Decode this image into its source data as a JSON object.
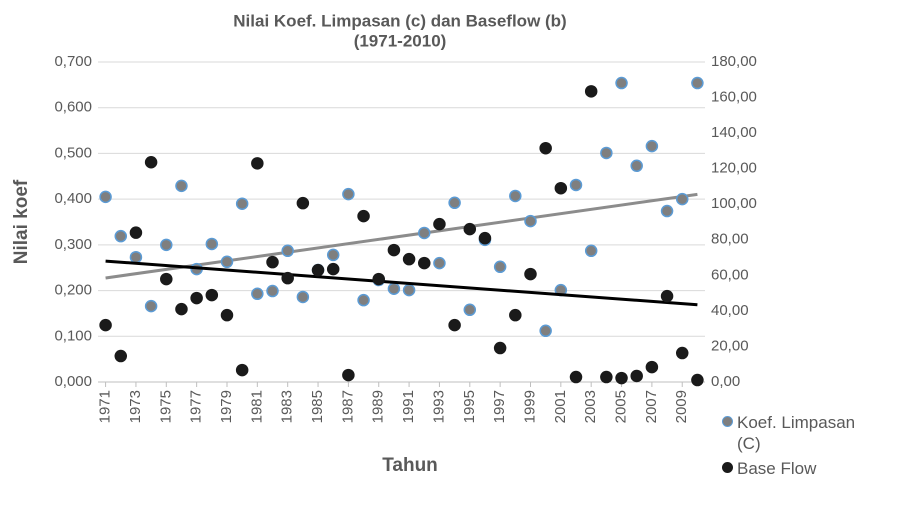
{
  "chart_data": {
    "type": "scatter",
    "title": "Nilai Koef. Limpasan (c) dan Baseflow (b)",
    "subtitle": "(1971-2010)",
    "x_label": "Tahun",
    "y_label": "Nilai koef",
    "x": [
      1971,
      1972,
      1973,
      1974,
      1975,
      1976,
      1977,
      1978,
      1979,
      1980,
      1981,
      1982,
      1983,
      1984,
      1985,
      1986,
      1987,
      1988,
      1989,
      1990,
      1991,
      1992,
      1993,
      1994,
      1995,
      1996,
      1997,
      1998,
      1999,
      2000,
      2001,
      2002,
      2003,
      2004,
      2005,
      2006,
      2007,
      2008,
      2009,
      2010
    ],
    "series": [
      {
        "name": "Koef. Limpasan (C)",
        "color": "#7f7f7f",
        "edge_color": "#5b9bd5",
        "trend_color": "#8c8c8c",
        "axis": "y",
        "values": [
          0.405,
          0.319,
          0.273,
          0.166,
          0.3,
          0.429,
          0.247,
          0.302,
          0.263,
          0.39,
          0.193,
          0.199,
          0.287,
          0.186,
          0.245,
          0.278,
          0.411,
          0.179,
          0.223,
          0.204,
          0.201,
          0.326,
          0.26,
          0.392,
          0.158,
          0.311,
          0.252,
          0.407,
          0.352,
          0.112,
          0.201,
          0.431,
          0.287,
          0.501,
          0.654,
          0.473,
          0.516,
          0.374,
          0.4,
          0.654
        ]
      },
      {
        "name": "Base Flow",
        "color": "#1a1a1a",
        "edge_color": "#1a1a1a",
        "trend_color": "#000000",
        "axis": "y2",
        "values": [
          32,
          14.6,
          84,
          123.6,
          57.9,
          41,
          47.2,
          48.9,
          37.6,
          6.7,
          123,
          67.4,
          58.4,
          100.6,
          62.9,
          63.5,
          3.9,
          93.3,
          57.9,
          74.2,
          69.1,
          66.9,
          88.8,
          32,
          86,
          80.9,
          19.1,
          37.6,
          60.7,
          131.5,
          109,
          2.8,
          163.5,
          2.8,
          2.2,
          3.4,
          8.4,
          48.3,
          16.3,
          1.1
        ]
      }
    ],
    "trendline": true,
    "grid": true,
    "legend": "right",
    "xlim": [
      1970.5,
      2010.5
    ],
    "xticks": [
      1971,
      1973,
      1975,
      1977,
      1979,
      1981,
      1983,
      1985,
      1987,
      1989,
      1991,
      1993,
      1995,
      1997,
      1999,
      2001,
      2003,
      2005,
      2007,
      2009
    ],
    "ylim": [
      0,
      0.7
    ],
    "yticks": [
      {
        "value": 0,
        "label": "0,000"
      },
      {
        "value": 0.1,
        "label": "0,100"
      },
      {
        "value": 0.2,
        "label": "0,200"
      },
      {
        "value": 0.3,
        "label": "0,300"
      },
      {
        "value": 0.4,
        "label": "0,400"
      },
      {
        "value": 0.5,
        "label": "0,500"
      },
      {
        "value": 0.6,
        "label": "0,600"
      },
      {
        "value": 0.7,
        "label": "0,700"
      }
    ],
    "y2lim": [
      0,
      180
    ],
    "y2ticks": [
      {
        "value": 0,
        "label": "0,00"
      },
      {
        "value": 20,
        "label": "20,00"
      },
      {
        "value": 40,
        "label": "40,00"
      },
      {
        "value": 60,
        "label": "60,00"
      },
      {
        "value": 80,
        "label": "80,00"
      },
      {
        "value": 100,
        "label": "100,00"
      },
      {
        "value": 120,
        "label": "120,00"
      },
      {
        "value": 140,
        "label": "140,00"
      },
      {
        "value": 160,
        "label": "160,00"
      },
      {
        "value": 180,
        "label": "180,00"
      }
    ]
  }
}
